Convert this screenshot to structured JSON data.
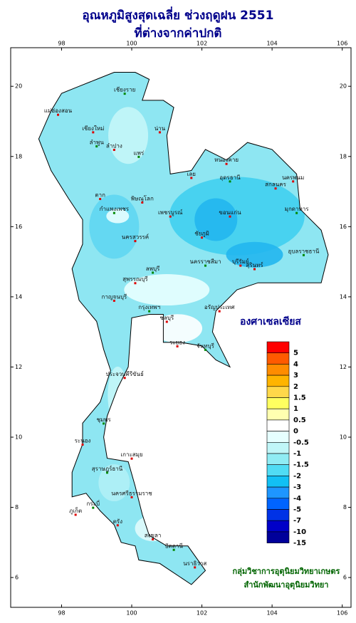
{
  "title": "อุณหภูมิสูงสุดเฉลี่ย ช่วงฤดูฝน 2551",
  "subtitle": "ที่ต่างจากค่าปกติ",
  "map": {
    "xlim": [
      96.55,
      106.25
    ],
    "ylim": [
      5.15,
      21.1
    ],
    "xticks": [
      98,
      100,
      102,
      104,
      106
    ],
    "yticks": [
      6,
      8,
      10,
      12,
      14,
      16,
      18,
      20
    ],
    "places": [
      "เชียงราย",
      "แม่ฮ่องสอน",
      "เชียงใหม่",
      "ลำพูน",
      "น่าน",
      "ลำปาง",
      "แพร่",
      "เลย",
      "หนองคาย",
      "อุดรธานี",
      "นครพนม",
      "สกลนคร",
      "มุกดาหาร",
      "ขอนแก่น",
      "ชัยภูมิ",
      "นครราชสีมา",
      "บุรีรัมย์",
      "สุรินทร์",
      "อุบลราชธานี",
      "ตาก",
      "พิษณุโลก",
      "กำแพงเพชร",
      "เพชรบูรณ์",
      "นครสวรรค์",
      "ลพบุรี",
      "สุพรรณบุรี",
      "กาญจนบุรี",
      "กรุงเทพฯ",
      "ชลบุรี",
      "ระยอง",
      "จันทบุรี",
      "อรัญประเทศ",
      "ประจวบคีรีขันธ์",
      "ชุมพร",
      "ระนอง",
      "เกาะสมุย",
      "สุราษฎร์ธานี",
      "นครศรีธรรมราช",
      "ภูเก็ต",
      "กระบี่",
      "ตรัง",
      "สงขลา",
      "ปัตตานี",
      "นราธิวาส"
    ]
  },
  "legend": {
    "unit": "องศาเซลเซียส",
    "levels": [
      5,
      4,
      3,
      2,
      1.5,
      1,
      0.5,
      0,
      -0.5,
      -1,
      -1.5,
      -2,
      -3,
      -4,
      -5,
      -7,
      -10,
      -15
    ],
    "colors": [
      "#ff0000",
      "#ff5a00",
      "#ff8c00",
      "#ffb400",
      "#ffd84a",
      "#ffff60",
      "#ffffb0",
      "#ffffff",
      "#e6ffff",
      "#c0f6f8",
      "#90ecf4",
      "#50dcf4",
      "#12c0f4",
      "#1e96ff",
      "#0064ff",
      "#0032e6",
      "#0000c8",
      "#00009a"
    ]
  },
  "credits": [
    "กลุ่มวิชาการอุตุนิยมวิทยาเกษตร",
    "สำนักพัฒนาอุตุนิยมวิทยา"
  ]
}
